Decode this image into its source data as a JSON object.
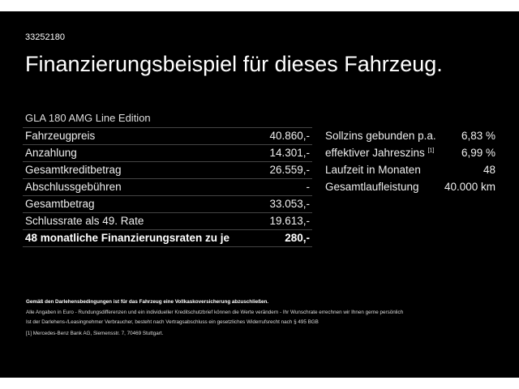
{
  "id_number": "33252180",
  "title": "Finanzierungsbeispiel für dieses Fahrzeug.",
  "model": "GLA 180 AMG Line Edition",
  "left_rows": [
    {
      "label": "Fahrzeugpreis",
      "value": "40.860,-"
    },
    {
      "label": "Anzahlung",
      "value": "14.301,-"
    },
    {
      "label": "Gesamtkreditbetrag",
      "value": "26.559,-"
    },
    {
      "label": "Abschlussgebühren",
      "value": "-"
    },
    {
      "label": "Gesamtbetrag",
      "value": "33.053,-"
    },
    {
      "label": "Schlussrate als 49. Rate",
      "value": "19.613,-"
    },
    {
      "label": "48 monatliche Finanzierungsraten zu je",
      "value": "280,-"
    }
  ],
  "right_rows": [
    {
      "label": "Sollzins gebunden p.a.",
      "value": "6,83 %"
    },
    {
      "label": "effektiver Jahreszins",
      "sup": "[1]",
      "value": "6,99 %"
    },
    {
      "label": "Laufzeit in Monaten",
      "value": "48"
    },
    {
      "label": "Gesamtlaufleistung",
      "value": "40.000 km"
    }
  ],
  "footnotes": {
    "bold": "Gemäß den Darlehensbedingungen ist für das Fahrzeug eine Vollkaskoversicherung abzuschließen.",
    "line1": "Alle Angaben in Euro - Rundungsdifferenzen und ein individueller Kreditschutzbrief können die Werte verändern - Ihr Wunschrate errechnen wir Ihnen gerne persönlich",
    "line2": "Ist der Darlehens-/Leasingnehmer Verbraucher, besteht nach Vertragsabschluss ein gesetzliches Widerrufsrecht nach § 495 BGB",
    "ref": "[1]  Mercedes-Benz Bank AG, Siemensstr. 7, 70469 Stuttgart."
  }
}
